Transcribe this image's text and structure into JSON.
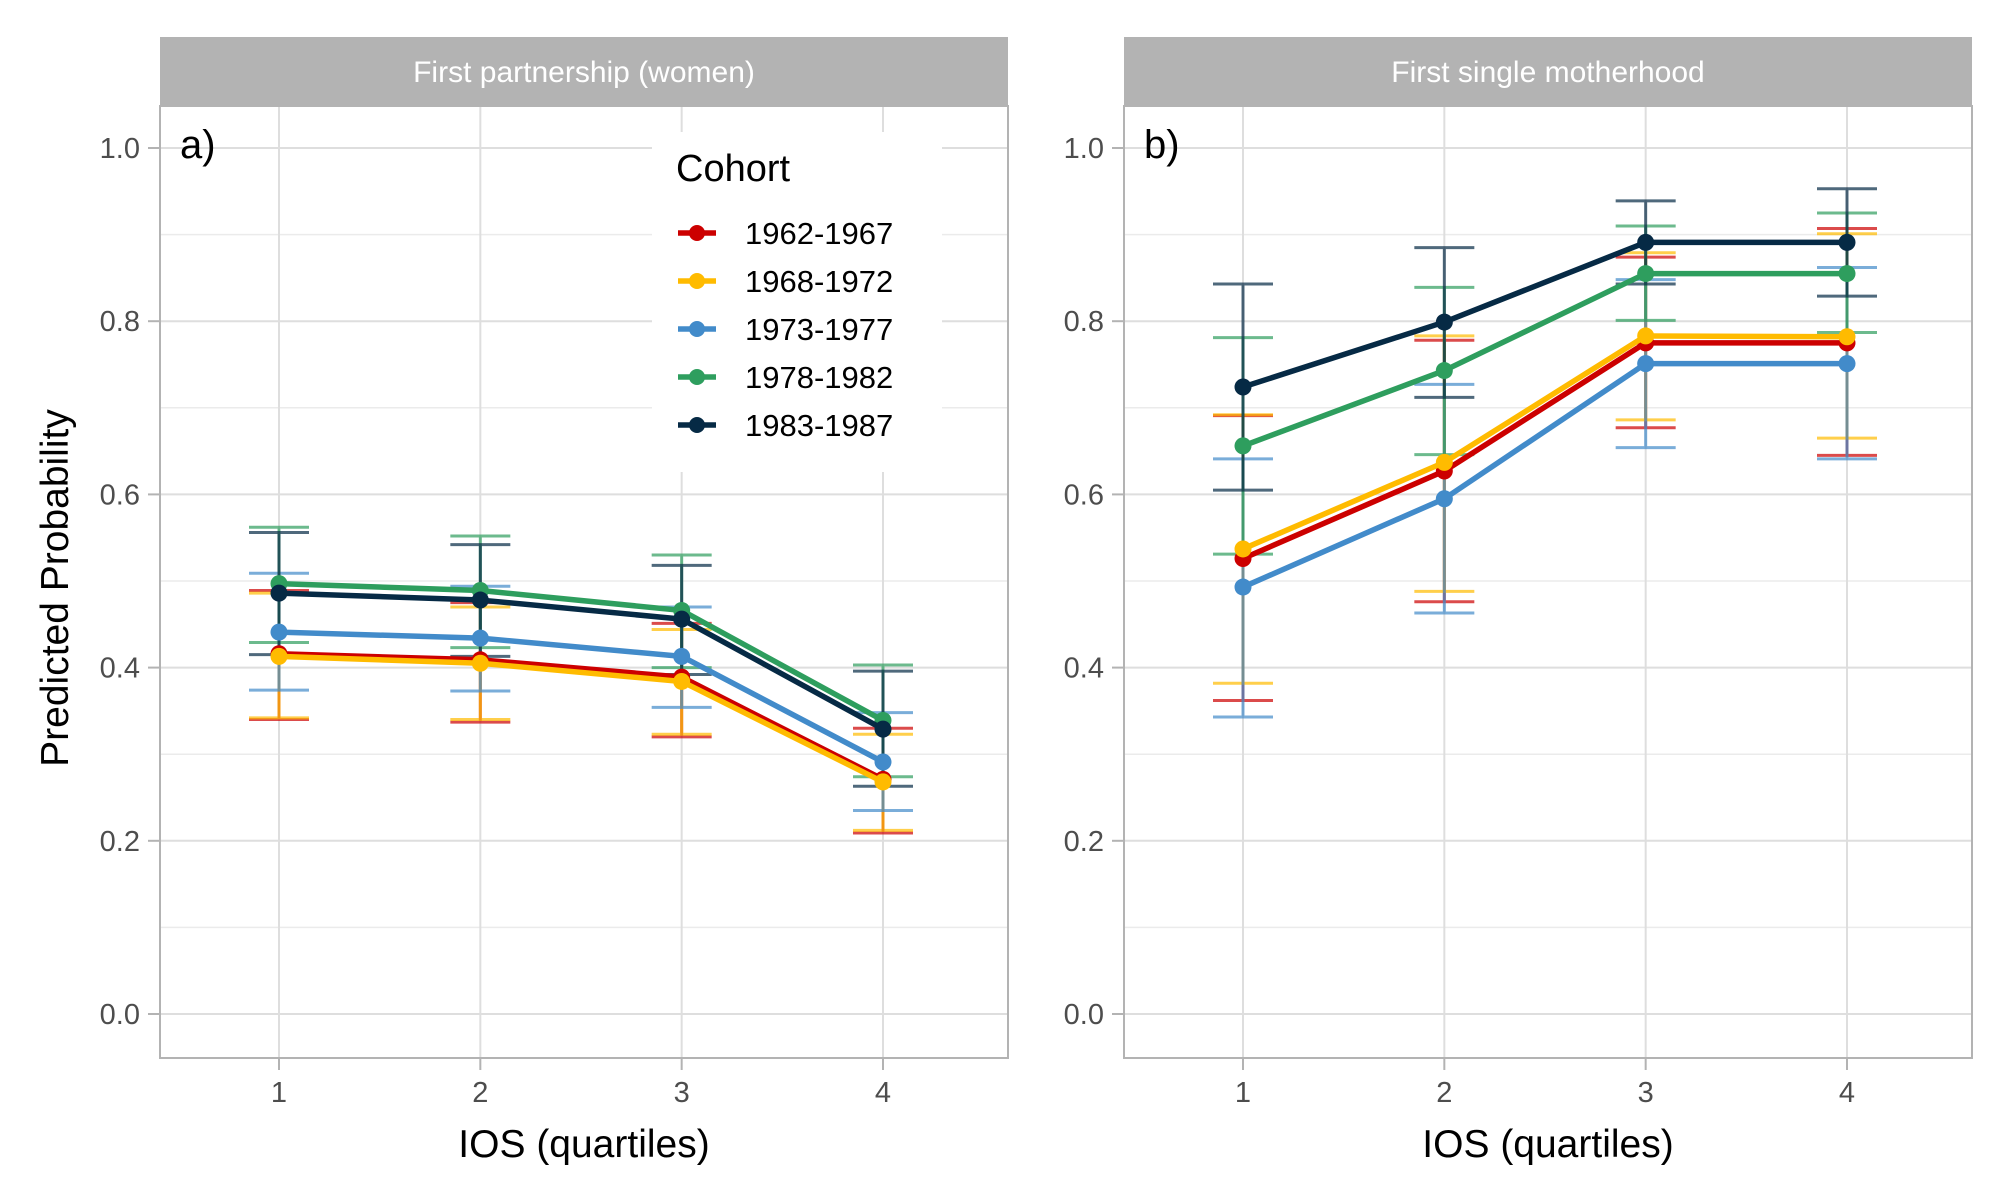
{
  "chart_data": {
    "type": "line",
    "ylabel": "Predicted Probability",
    "xlabel": "IOS (quartiles)",
    "x": [
      1,
      2,
      3,
      4
    ],
    "x_tick_labels": [
      "1",
      "2",
      "3",
      "4"
    ],
    "xlim": [
      0.4,
      4.6
    ],
    "ylim": [
      -0.05,
      1.05
    ],
    "y_ticks": [
      0.0,
      0.2,
      0.4,
      0.6,
      0.8,
      1.0
    ],
    "y_tick_labels": [
      "0.0",
      "0.2",
      "0.4",
      "0.6",
      "0.8",
      "1.0"
    ],
    "grid": true,
    "legend": {
      "title": "Cohort",
      "placement": "top-right of panel a",
      "entries": [
        "1962-1967",
        "1968-1972",
        "1973-1977",
        "1978-1982",
        "1983-1987"
      ]
    },
    "series_colors": {
      "1962-1967": "#CC0000",
      "1968-1972": "#FFBB00",
      "1973-1977": "#428BCA",
      "1978-1982": "#2E9E5E",
      "1983-1987": "#062A45"
    },
    "panels": [
      {
        "tag": "a)",
        "title": "First partnership (women)",
        "series": [
          {
            "name": "1962-1967",
            "values": [
              0.416,
              0.409,
              0.389,
              0.271
            ],
            "lower": [
              0.34,
              0.337,
              0.32,
              0.209
            ],
            "upper": [
              0.489,
              0.475,
              0.451,
              0.33
            ]
          },
          {
            "name": "1968-1972",
            "values": [
              0.413,
              0.405,
              0.384,
              0.268
            ],
            "lower": [
              0.342,
              0.34,
              0.323,
              0.212
            ],
            "upper": [
              0.486,
              0.47,
              0.444,
              0.323
            ]
          },
          {
            "name": "1973-1977",
            "values": [
              0.441,
              0.434,
              0.413,
              0.291
            ],
            "lower": [
              0.374,
              0.373,
              0.354,
              0.235
            ],
            "upper": [
              0.509,
              0.494,
              0.47,
              0.348
            ]
          },
          {
            "name": "1978-1982",
            "values": [
              0.497,
              0.489,
              0.466,
              0.339
            ],
            "lower": [
              0.429,
              0.423,
              0.4,
              0.274
            ],
            "upper": [
              0.562,
              0.552,
              0.53,
              0.403
            ]
          },
          {
            "name": "1983-1987",
            "values": [
              0.486,
              0.478,
              0.456,
              0.329
            ],
            "lower": [
              0.415,
              0.413,
              0.392,
              0.263
            ],
            "upper": [
              0.556,
              0.542,
              0.518,
              0.396
            ]
          }
        ]
      },
      {
        "tag": "b)",
        "title": "First single motherhood",
        "series": [
          {
            "name": "1962-1967",
            "values": [
              0.526,
              0.627,
              0.775,
              0.775
            ],
            "lower": [
              0.362,
              0.476,
              0.677,
              0.645
            ],
            "upper": [
              0.691,
              0.778,
              0.874,
              0.907
            ]
          },
          {
            "name": "1968-1972",
            "values": [
              0.537,
              0.637,
              0.783,
              0.782
            ],
            "lower": [
              0.382,
              0.488,
              0.686,
              0.665
            ],
            "upper": [
              0.692,
              0.783,
              0.879,
              0.901
            ]
          },
          {
            "name": "1973-1977",
            "values": [
              0.493,
              0.595,
              0.751,
              0.751
            ],
            "lower": [
              0.343,
              0.463,
              0.654,
              0.641
            ],
            "upper": [
              0.641,
              0.727,
              0.848,
              0.862
            ]
          },
          {
            "name": "1978-1982",
            "values": [
              0.656,
              0.743,
              0.855,
              0.855
            ],
            "lower": [
              0.531,
              0.646,
              0.801,
              0.787
            ],
            "upper": [
              0.781,
              0.839,
              0.91,
              0.925
            ]
          },
          {
            "name": "1983-1987",
            "values": [
              0.724,
              0.799,
              0.891,
              0.891
            ],
            "lower": [
              0.605,
              0.712,
              0.843,
              0.829
            ],
            "upper": [
              0.843,
              0.885,
              0.939,
              0.953
            ]
          }
        ]
      }
    ]
  }
}
